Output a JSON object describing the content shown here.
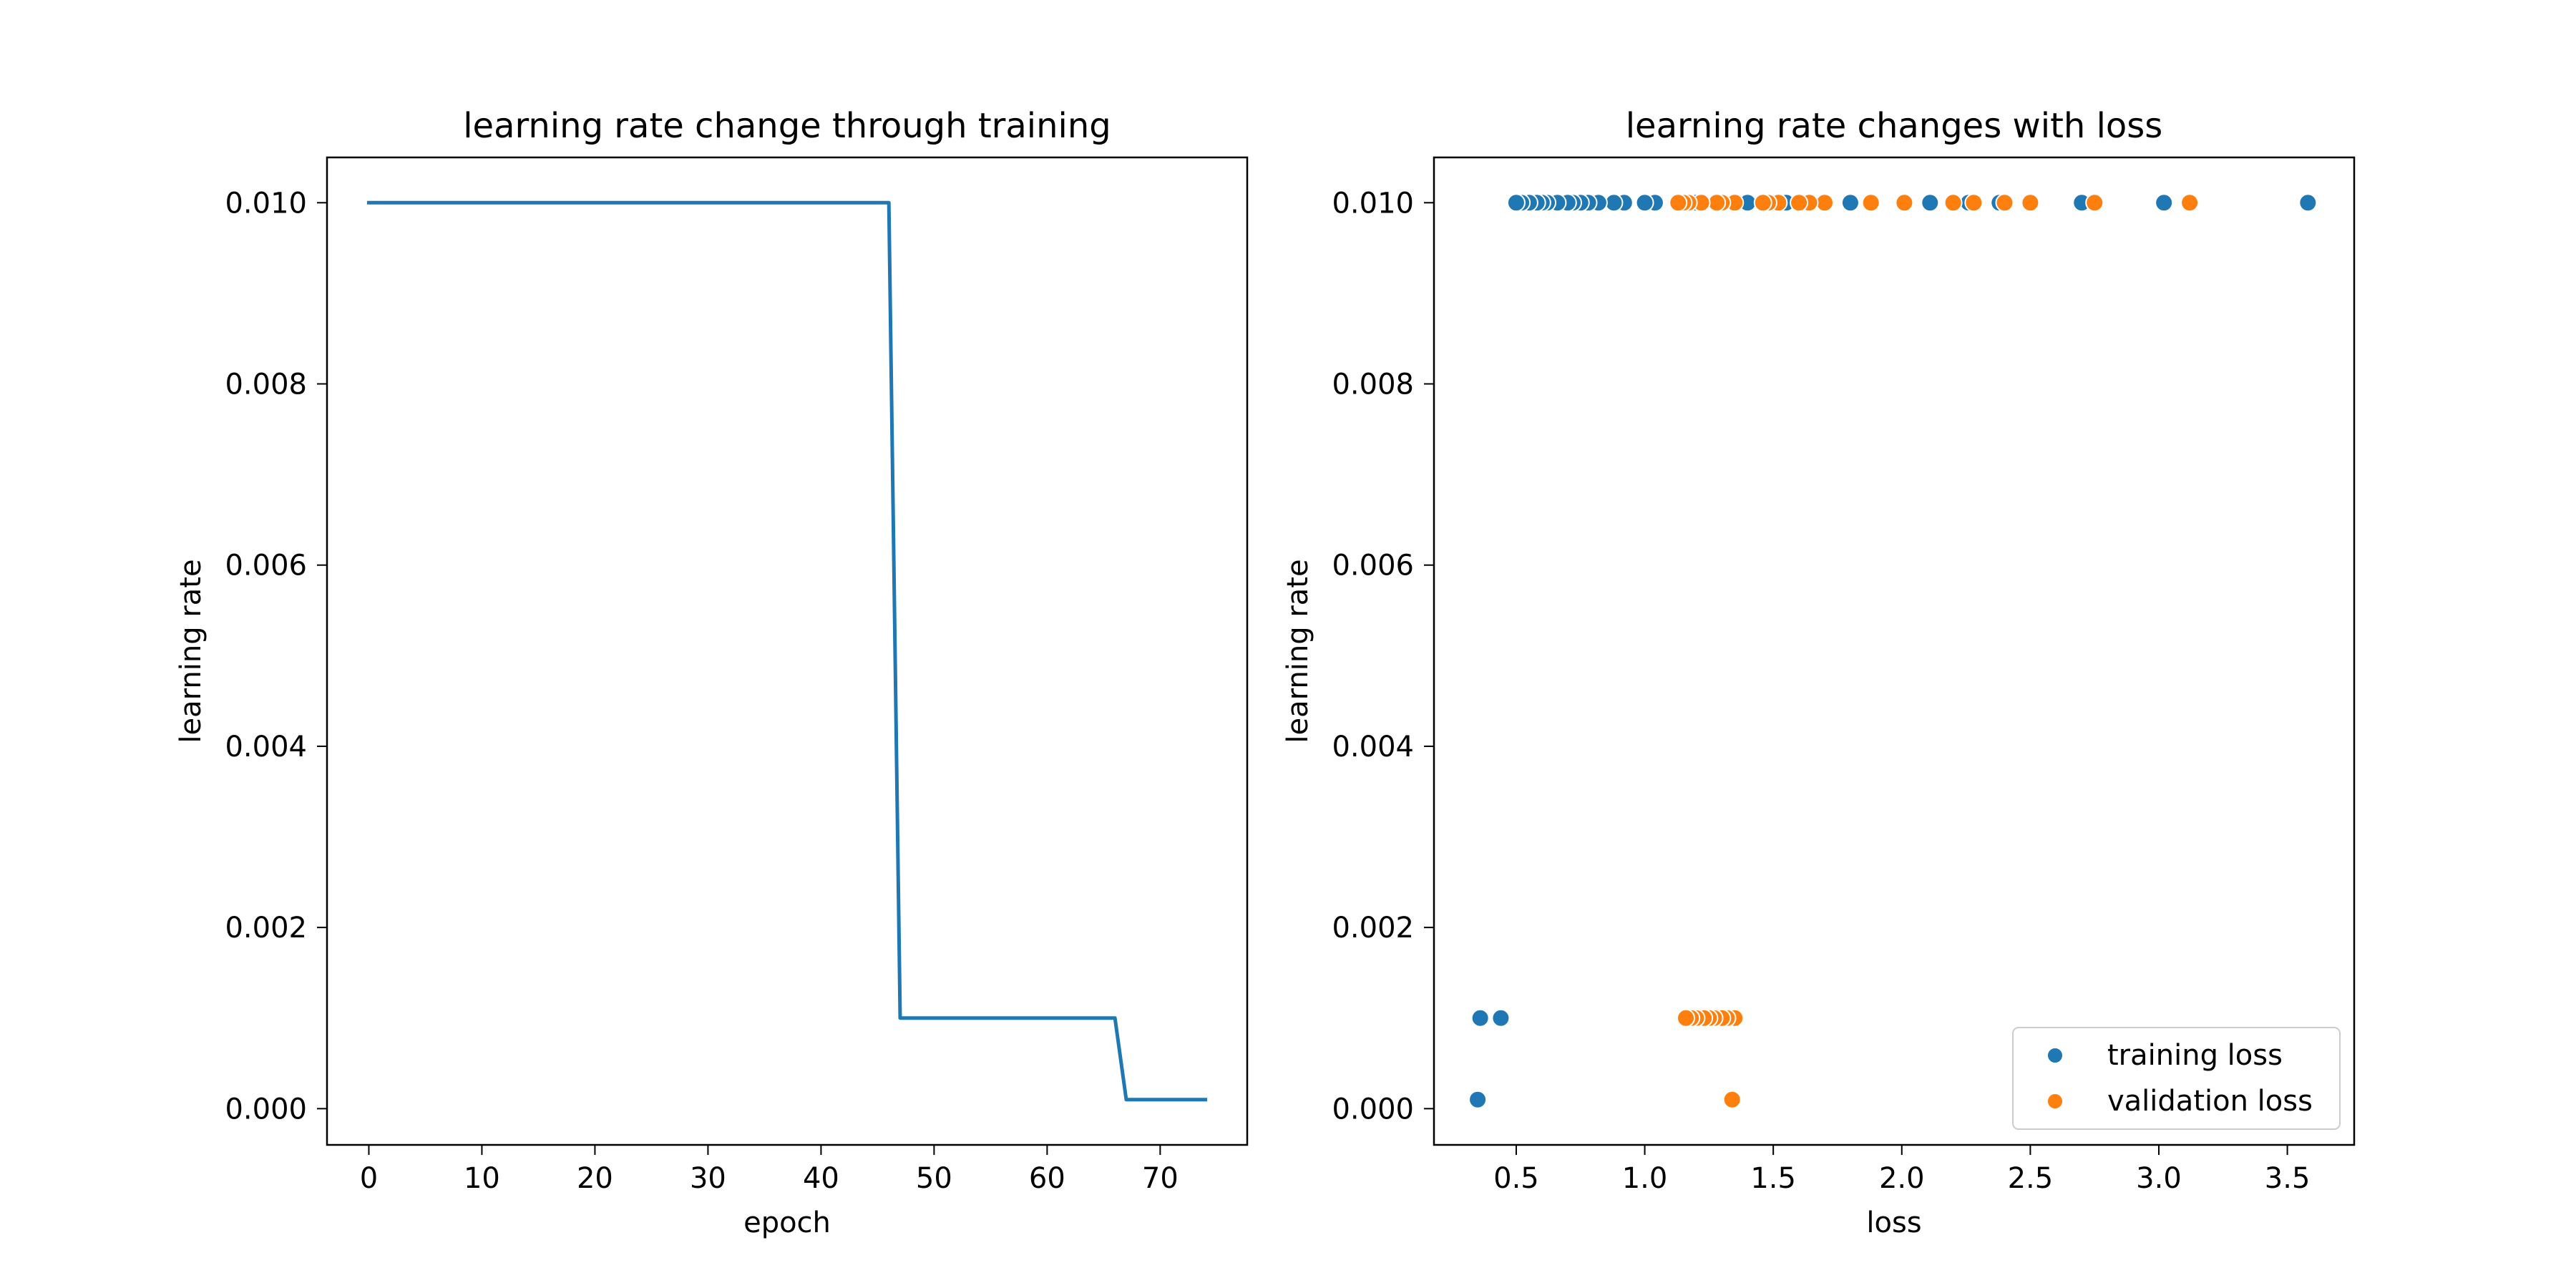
{
  "chart_data": [
    {
      "type": "line",
      "title": "learning rate change through training",
      "xlabel": "epoch",
      "ylabel": "learning rate",
      "xlim": [
        -3.7,
        77.7
      ],
      "ylim": [
        -0.0004,
        0.0105
      ],
      "xticks": [
        0,
        10,
        20,
        30,
        40,
        50,
        60,
        70
      ],
      "xtick_labels": [
        "0",
        "10",
        "20",
        "30",
        "40",
        "50",
        "60",
        "70"
      ],
      "yticks": [
        0.0,
        0.002,
        0.004,
        0.006,
        0.008,
        0.01
      ],
      "ytick_labels": [
        "0.000",
        "0.002",
        "0.004",
        "0.006",
        "0.008",
        "0.010"
      ],
      "grid": false,
      "series": [
        {
          "color": "#1f77b4",
          "x": [
            0,
            46,
            47,
            66,
            67,
            74
          ],
          "y": [
            0.01,
            0.01,
            0.001,
            0.001,
            0.0001,
            0.0001
          ]
        }
      ]
    },
    {
      "type": "scatter",
      "title": "learning rate changes with loss",
      "xlabel": "loss",
      "ylabel": "learning rate",
      "xlim": [
        0.18,
        3.76
      ],
      "ylim": [
        -0.0004,
        0.0105
      ],
      "xticks": [
        0.5,
        1.0,
        1.5,
        2.0,
        2.5,
        3.0,
        3.5
      ],
      "xtick_labels": [
        "0.5",
        "1.0",
        "1.5",
        "2.0",
        "2.5",
        "3.0",
        "3.5"
      ],
      "yticks": [
        0.0,
        0.002,
        0.004,
        0.006,
        0.008,
        0.01
      ],
      "ytick_labels": [
        "0.000",
        "0.002",
        "0.004",
        "0.006",
        "0.008",
        "0.010"
      ],
      "grid": false,
      "legend_position": "lower-right",
      "series": [
        {
          "name": "training loss",
          "color": "#1f77b4",
          "x": [
            3.58,
            3.02,
            2.7,
            2.38,
            2.26,
            2.11,
            1.8,
            1.55,
            1.5,
            1.4,
            1.3,
            1.2,
            1.04,
            1.0,
            0.92,
            0.88,
            0.82,
            0.78,
            0.75,
            0.72,
            0.7,
            0.66,
            0.62,
            0.6,
            0.58,
            0.55,
            0.52,
            0.5,
            0.44,
            0.36,
            0.35
          ],
          "y": [
            0.01,
            0.01,
            0.01,
            0.01,
            0.01,
            0.01,
            0.01,
            0.01,
            0.01,
            0.01,
            0.01,
            0.01,
            0.01,
            0.01,
            0.01,
            0.01,
            0.01,
            0.01,
            0.01,
            0.01,
            0.01,
            0.01,
            0.01,
            0.01,
            0.01,
            0.01,
            0.01,
            0.01,
            0.001,
            0.001,
            0.0001
          ]
        },
        {
          "name": "validation loss",
          "color": "#ff7f0e",
          "x": [
            3.12,
            2.75,
            2.5,
            2.4,
            2.28,
            2.2,
            2.01,
            1.88,
            1.7,
            1.64,
            1.6,
            1.52,
            1.48,
            1.46,
            1.35,
            1.3,
            1.28,
            1.22,
            1.17,
            1.15,
            1.13,
            1.35,
            1.32,
            1.3,
            1.27,
            1.25,
            1.23,
            1.2,
            1.18,
            1.16,
            1.34
          ],
          "y": [
            0.01,
            0.01,
            0.01,
            0.01,
            0.01,
            0.01,
            0.01,
            0.01,
            0.01,
            0.01,
            0.01,
            0.01,
            0.01,
            0.01,
            0.01,
            0.01,
            0.01,
            0.01,
            0.01,
            0.01,
            0.01,
            0.001,
            0.001,
            0.001,
            0.001,
            0.001,
            0.001,
            0.001,
            0.001,
            0.001,
            0.0001
          ]
        }
      ]
    }
  ]
}
